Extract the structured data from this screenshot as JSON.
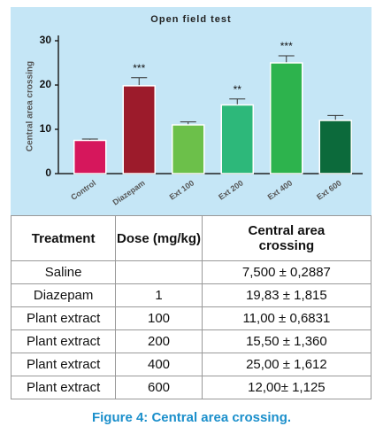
{
  "chart_data": {
    "type": "bar",
    "title": "Open field test",
    "y_label": "Central area crossing",
    "categories": [
      "Control",
      "Diazepam",
      "Ext 100",
      "Ext 200",
      "Ext 400",
      "Ext 600"
    ],
    "values": [
      7.5,
      19.83,
      11,
      15.5,
      25,
      12
    ],
    "errors": [
      0.2887,
      1.815,
      0.6831,
      1.36,
      1.612,
      1.125
    ],
    "significance": [
      null,
      "***",
      null,
      "**",
      "***",
      null
    ],
    "colors": [
      "#d6175c",
      "#9c1b2b",
      "#6cc04a",
      "#2db87a",
      "#2db34d",
      "#0c6a3b"
    ],
    "ylim": [
      0,
      30
    ],
    "yticks": [
      0,
      10,
      20,
      30
    ],
    "background": "#c5e6f6"
  },
  "table": {
    "header": [
      "Treatment",
      "Dose (mg/kg)",
      "Central area crossing"
    ],
    "rows": [
      [
        "Saline",
        null,
        "7,500 ± 0,2887"
      ],
      [
        "Diazepam",
        "1",
        "19,83 ± 1,815"
      ],
      [
        "Plant extract",
        "100",
        "11,00 ± 0,6831"
      ],
      [
        "Plant extract",
        "200",
        "15,50 ± 1,360"
      ],
      [
        "Plant extract",
        "400",
        "25,00 ± 1,612"
      ],
      [
        "Plant extract",
        "600",
        "12,00± 1,125"
      ]
    ]
  },
  "caption": "Figure 4: Central area crossing."
}
